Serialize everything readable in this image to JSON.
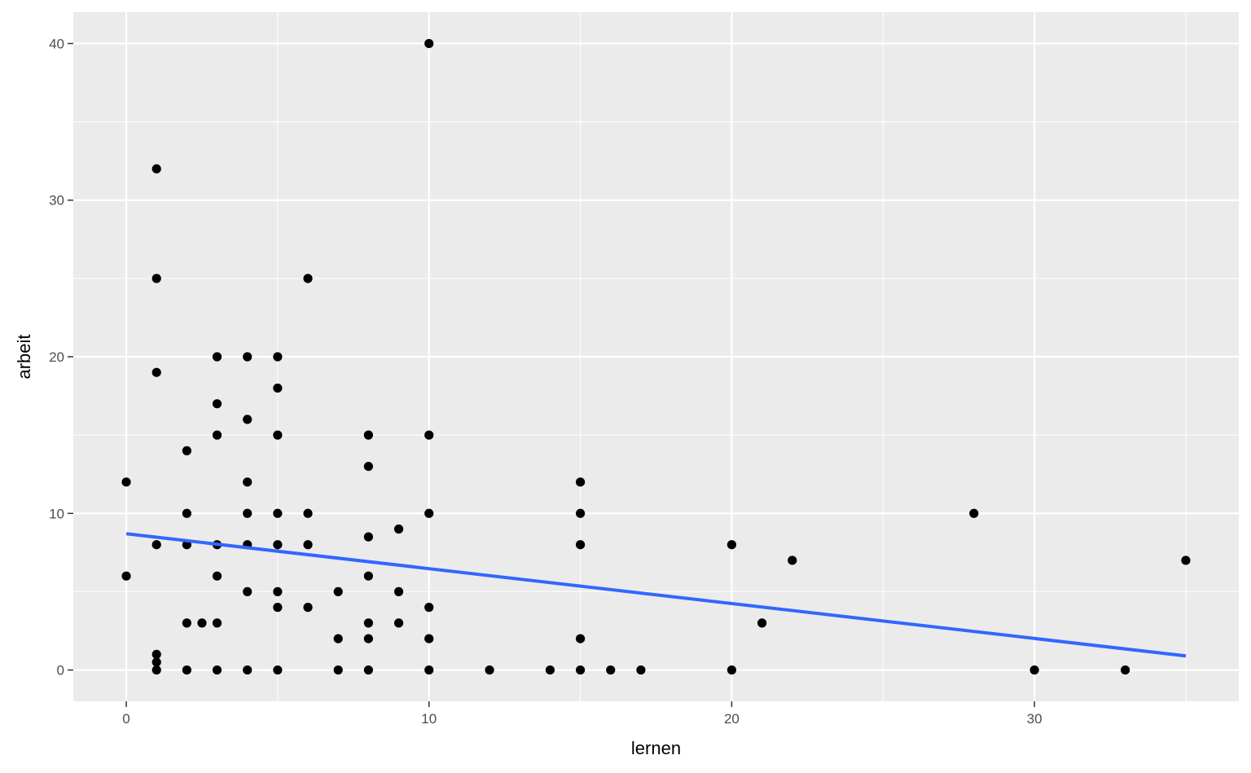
{
  "chart_data": {
    "type": "scatter",
    "title": "",
    "xlabel": "lernen",
    "ylabel": "arbeit",
    "xlim": [
      -1.75,
      36.75
    ],
    "ylim": [
      -2,
      42
    ],
    "x_ticks": [
      0,
      10,
      20,
      30
    ],
    "y_ticks": [
      0,
      10,
      20,
      30,
      40
    ],
    "x_tick_labels": [
      "0",
      "10",
      "20",
      "30"
    ],
    "y_tick_labels": [
      "0",
      "10",
      "20",
      "30",
      "40"
    ],
    "grid": true,
    "legend": "none",
    "colors": {
      "panel_background": "#ebebeb",
      "grid": "#ffffff",
      "points": "#000000",
      "trend_line": "#3366ff"
    },
    "points": [
      {
        "x": 0,
        "y": 12
      },
      {
        "x": 0,
        "y": 6
      },
      {
        "x": 1,
        "y": 32
      },
      {
        "x": 1,
        "y": 25
      },
      {
        "x": 1,
        "y": 19
      },
      {
        "x": 1,
        "y": 8
      },
      {
        "x": 1,
        "y": 1
      },
      {
        "x": 1,
        "y": 0.5
      },
      {
        "x": 1,
        "y": 0
      },
      {
        "x": 2,
        "y": 14
      },
      {
        "x": 2,
        "y": 10
      },
      {
        "x": 2,
        "y": 8
      },
      {
        "x": 2,
        "y": 3
      },
      {
        "x": 2,
        "y": 0
      },
      {
        "x": 2.5,
        "y": 3
      },
      {
        "x": 3,
        "y": 20
      },
      {
        "x": 3,
        "y": 17
      },
      {
        "x": 3,
        "y": 15
      },
      {
        "x": 3,
        "y": 8
      },
      {
        "x": 3,
        "y": 6
      },
      {
        "x": 3,
        "y": 3
      },
      {
        "x": 3,
        "y": 0
      },
      {
        "x": 4,
        "y": 20
      },
      {
        "x": 4,
        "y": 16
      },
      {
        "x": 4,
        "y": 12
      },
      {
        "x": 4,
        "y": 10
      },
      {
        "x": 4,
        "y": 8
      },
      {
        "x": 4,
        "y": 5
      },
      {
        "x": 4,
        "y": 0
      },
      {
        "x": 5,
        "y": 20
      },
      {
        "x": 5,
        "y": 18
      },
      {
        "x": 5,
        "y": 15
      },
      {
        "x": 5,
        "y": 10
      },
      {
        "x": 5,
        "y": 8
      },
      {
        "x": 5,
        "y": 5
      },
      {
        "x": 5,
        "y": 4
      },
      {
        "x": 5,
        "y": 0
      },
      {
        "x": 6,
        "y": 25
      },
      {
        "x": 6,
        "y": 10
      },
      {
        "x": 6,
        "y": 8
      },
      {
        "x": 6,
        "y": 4
      },
      {
        "x": 7,
        "y": 5
      },
      {
        "x": 7,
        "y": 2
      },
      {
        "x": 7,
        "y": 0
      },
      {
        "x": 8,
        "y": 15
      },
      {
        "x": 8,
        "y": 13
      },
      {
        "x": 8,
        "y": 8.5
      },
      {
        "x": 8,
        "y": 6
      },
      {
        "x": 8,
        "y": 3
      },
      {
        "x": 8,
        "y": 2
      },
      {
        "x": 8,
        "y": 0
      },
      {
        "x": 9,
        "y": 9
      },
      {
        "x": 9,
        "y": 5
      },
      {
        "x": 9,
        "y": 3
      },
      {
        "x": 10,
        "y": 40
      },
      {
        "x": 10,
        "y": 15
      },
      {
        "x": 10,
        "y": 10
      },
      {
        "x": 10,
        "y": 4
      },
      {
        "x": 10,
        "y": 2
      },
      {
        "x": 10,
        "y": 0
      },
      {
        "x": 12,
        "y": 0
      },
      {
        "x": 14,
        "y": 0
      },
      {
        "x": 15,
        "y": 12
      },
      {
        "x": 15,
        "y": 10
      },
      {
        "x": 15,
        "y": 8
      },
      {
        "x": 15,
        "y": 2
      },
      {
        "x": 15,
        "y": 0
      },
      {
        "x": 16,
        "y": 0
      },
      {
        "x": 17,
        "y": 0
      },
      {
        "x": 20,
        "y": 8
      },
      {
        "x": 20,
        "y": 0
      },
      {
        "x": 21,
        "y": 3
      },
      {
        "x": 22,
        "y": 7
      },
      {
        "x": 28,
        "y": 10
      },
      {
        "x": 30,
        "y": 0
      },
      {
        "x": 33,
        "y": 0
      },
      {
        "x": 35,
        "y": 7
      }
    ],
    "trend_line": {
      "x": [
        0,
        35
      ],
      "y": [
        8.7,
        0.9
      ]
    }
  }
}
